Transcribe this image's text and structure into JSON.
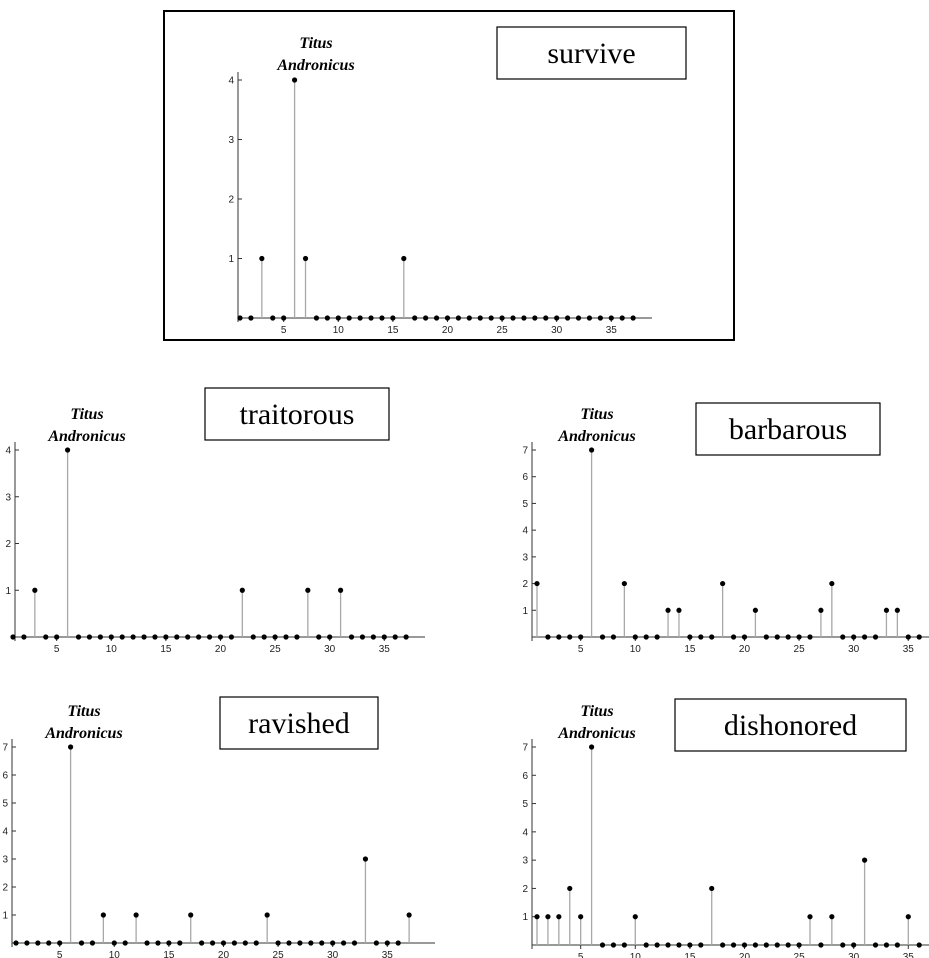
{
  "chart_data": [
    {
      "type": "stem",
      "annotation": "Titus Andronicus",
      "keyword": "survive",
      "x": [
        1,
        2,
        3,
        4,
        5,
        6,
        7,
        8,
        9,
        10,
        11,
        12,
        13,
        14,
        15,
        16,
        17,
        18,
        19,
        20,
        21,
        22,
        23,
        24,
        25,
        26,
        27,
        28,
        29,
        30,
        31,
        32,
        33,
        34,
        35,
        36,
        37
      ],
      "values": [
        0,
        0,
        1,
        0,
        0,
        4,
        1,
        0,
        0,
        0,
        0,
        0,
        0,
        0,
        0,
        1,
        0,
        0,
        0,
        0,
        0,
        0,
        0,
        0,
        0,
        0,
        0,
        0,
        0,
        0,
        0,
        0,
        0,
        0,
        0,
        0,
        0
      ],
      "xticks": [
        5,
        10,
        15,
        20,
        25,
        30,
        35
      ],
      "yticks": [
        1,
        2,
        3,
        4
      ],
      "xlim": [
        1,
        37
      ],
      "ylim": [
        0,
        4
      ]
    },
    {
      "type": "stem",
      "annotation": "Titus Andronicus",
      "keyword": "traitorous",
      "x": [
        1,
        2,
        3,
        4,
        5,
        6,
        7,
        8,
        9,
        10,
        11,
        12,
        13,
        14,
        15,
        16,
        17,
        18,
        19,
        20,
        21,
        22,
        23,
        24,
        25,
        26,
        27,
        28,
        29,
        30,
        31,
        32,
        33,
        34,
        35,
        36,
        37
      ],
      "values": [
        0,
        0,
        1,
        0,
        0,
        4,
        0,
        0,
        0,
        0,
        0,
        0,
        0,
        0,
        0,
        0,
        0,
        0,
        0,
        0,
        0,
        1,
        0,
        0,
        0,
        0,
        0,
        1,
        0,
        0,
        1,
        0,
        0,
        0,
        0,
        0,
        0
      ],
      "xticks": [
        5,
        10,
        15,
        20,
        25,
        30,
        35
      ],
      "yticks": [
        1,
        2,
        3,
        4
      ],
      "xlim": [
        1,
        37
      ],
      "ylim": [
        0,
        4
      ]
    },
    {
      "type": "stem",
      "annotation": "Titus Andronicus",
      "keyword": "barbarous",
      "x": [
        1,
        2,
        3,
        4,
        5,
        6,
        7,
        8,
        9,
        10,
        11,
        12,
        13,
        14,
        15,
        16,
        17,
        18,
        19,
        20,
        21,
        22,
        23,
        24,
        25,
        26,
        27,
        28,
        29,
        30,
        31,
        32,
        33,
        34,
        35,
        36,
        37
      ],
      "values": [
        2,
        0,
        0,
        0,
        0,
        7,
        0,
        0,
        2,
        0,
        0,
        0,
        1,
        1,
        0,
        0,
        0,
        2,
        0,
        0,
        1,
        0,
        0,
        0,
        0,
        0,
        1,
        2,
        0,
        0,
        0,
        0,
        1,
        1,
        0,
        0,
        0
      ],
      "xticks": [
        5,
        10,
        15,
        20,
        25,
        30,
        35
      ],
      "yticks": [
        1,
        2,
        3,
        4,
        5,
        6,
        7
      ],
      "xlim": [
        1,
        37
      ],
      "ylim": [
        0,
        7
      ]
    },
    {
      "type": "stem",
      "annotation": "Titus Andronicus",
      "keyword": "ravished",
      "x": [
        1,
        2,
        3,
        4,
        5,
        6,
        7,
        8,
        9,
        10,
        11,
        12,
        13,
        14,
        15,
        16,
        17,
        18,
        19,
        20,
        21,
        22,
        23,
        24,
        25,
        26,
        27,
        28,
        29,
        30,
        31,
        32,
        33,
        34,
        35,
        36,
        37
      ],
      "values": [
        0,
        0,
        0,
        0,
        0,
        7,
        0,
        0,
        1,
        0,
        0,
        1,
        0,
        0,
        0,
        0,
        1,
        0,
        0,
        0,
        0,
        0,
        0,
        1,
        0,
        0,
        0,
        0,
        0,
        0,
        0,
        0,
        3,
        0,
        0,
        0,
        1
      ],
      "xticks": [
        5,
        10,
        15,
        20,
        25,
        30,
        35
      ],
      "yticks": [
        1,
        2,
        3,
        4,
        5,
        6,
        7
      ],
      "xlim": [
        1,
        37
      ],
      "ylim": [
        0,
        7
      ]
    },
    {
      "type": "stem",
      "annotation": "Titus Andronicus",
      "keyword": "dishonored",
      "x": [
        1,
        2,
        3,
        4,
        5,
        6,
        7,
        8,
        9,
        10,
        11,
        12,
        13,
        14,
        15,
        16,
        17,
        18,
        19,
        20,
        21,
        22,
        23,
        24,
        25,
        26,
        27,
        28,
        29,
        30,
        31,
        32,
        33,
        34,
        35,
        36,
        37
      ],
      "values": [
        1,
        1,
        1,
        2,
        1,
        7,
        0,
        0,
        0,
        1,
        0,
        0,
        0,
        0,
        0,
        0,
        2,
        0,
        0,
        0,
        0,
        0,
        0,
        0,
        0,
        1,
        0,
        1,
        0,
        0,
        3,
        0,
        0,
        0,
        1,
        0,
        0
      ],
      "xticks": [
        5,
        10,
        15,
        20,
        25,
        30,
        35
      ],
      "yticks": [
        1,
        2,
        3,
        4,
        5,
        6,
        7
      ],
      "xlim": [
        1,
        37
      ],
      "ylim": [
        0,
        7
      ]
    }
  ]
}
